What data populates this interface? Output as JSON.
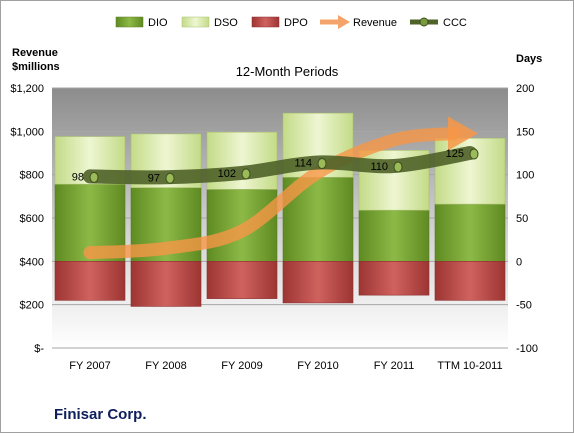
{
  "chart_data": {
    "type": "bar",
    "title": "12-Month Periods",
    "company": "Finisar Corp.",
    "left_axis_label": [
      "Revenue",
      "$millions"
    ],
    "right_axis_label": "Days",
    "categories": [
      "FY 2007",
      "FY 2008",
      "FY 2009",
      "FY 2010",
      "FY 2011",
      "TTM 10-2011"
    ],
    "left_axis": {
      "min": 0,
      "max": 1200,
      "step": 200,
      "tick_labels": [
        "$-",
        "$200",
        "$400",
        "$600",
        "$800",
        "$1,000",
        "$1,200"
      ]
    },
    "right_axis": {
      "min": -100,
      "max": 200,
      "step": 50,
      "tick_labels": [
        "-100",
        "-50",
        "0",
        "50",
        "100",
        "150",
        "200"
      ]
    },
    "legend_position": "top",
    "grid": true,
    "series": [
      {
        "name": "DIO",
        "unit": "days",
        "color": "#77a033",
        "values": [
          89,
          85,
          83,
          97,
          59,
          66
        ]
      },
      {
        "name": "DSO",
        "unit": "days",
        "color": "#d8e9a9",
        "values": [
          55,
          62,
          66,
          74,
          69,
          76
        ]
      },
      {
        "name": "DPO",
        "unit": "days",
        "color": "#c0504d",
        "values": [
          -45,
          -52,
          -43,
          -48,
          -39,
          -45
        ]
      },
      {
        "name": "Revenue",
        "unit": "$millions",
        "color": "#f79646",
        "values": [
          440,
          460,
          540,
          810,
          960,
          990
        ]
      },
      {
        "name": "CCC",
        "unit": "days",
        "color": "#4f6228",
        "values": [
          98,
          97,
          102,
          114,
          110,
          125
        ],
        "data_labels": [
          "98",
          "97",
          "102",
          "114",
          "110",
          "125"
        ]
      }
    ]
  }
}
